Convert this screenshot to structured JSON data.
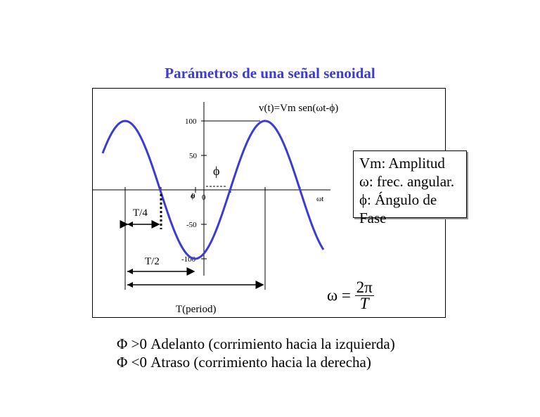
{
  "title": "Parámetros de una señal senoidal",
  "equation": "v(t)=Vm sen(ωt-ϕ)",
  "y_ticks": [
    "100",
    "50",
    "0",
    "-50",
    "-100"
  ],
  "axis_label_x": "ωt",
  "axis_label_zero": "0",
  "phi_label": "ϕ",
  "phi_small": "ϕ",
  "labels": {
    "t4": "T/4",
    "t2": "T/2",
    "period": "T(period)"
  },
  "info": {
    "line1": "Vm: Amplitud",
    "line2": "ω: frec. angular.",
    "line3": "ϕ: Ángulo de Fase"
  },
  "formula": {
    "lhs": "ω =",
    "num": "2π",
    "den": "T"
  },
  "notes": {
    "line1": "Φ >0 Adelanto (corrimiento hacia la izquierda)",
    "line2": "Φ <0 Atraso (corrimiento hacia la derecha)"
  },
  "colors": {
    "title": "#3b3bd6",
    "curve": "#3b3bd6"
  },
  "chart_data": {
    "type": "line",
    "function": "v(t)=Vm sen(ωt-ϕ)",
    "amplitude": 100,
    "ylim": [
      -100,
      100
    ],
    "yticks": [
      100,
      50,
      0,
      -50,
      -100
    ]
  }
}
